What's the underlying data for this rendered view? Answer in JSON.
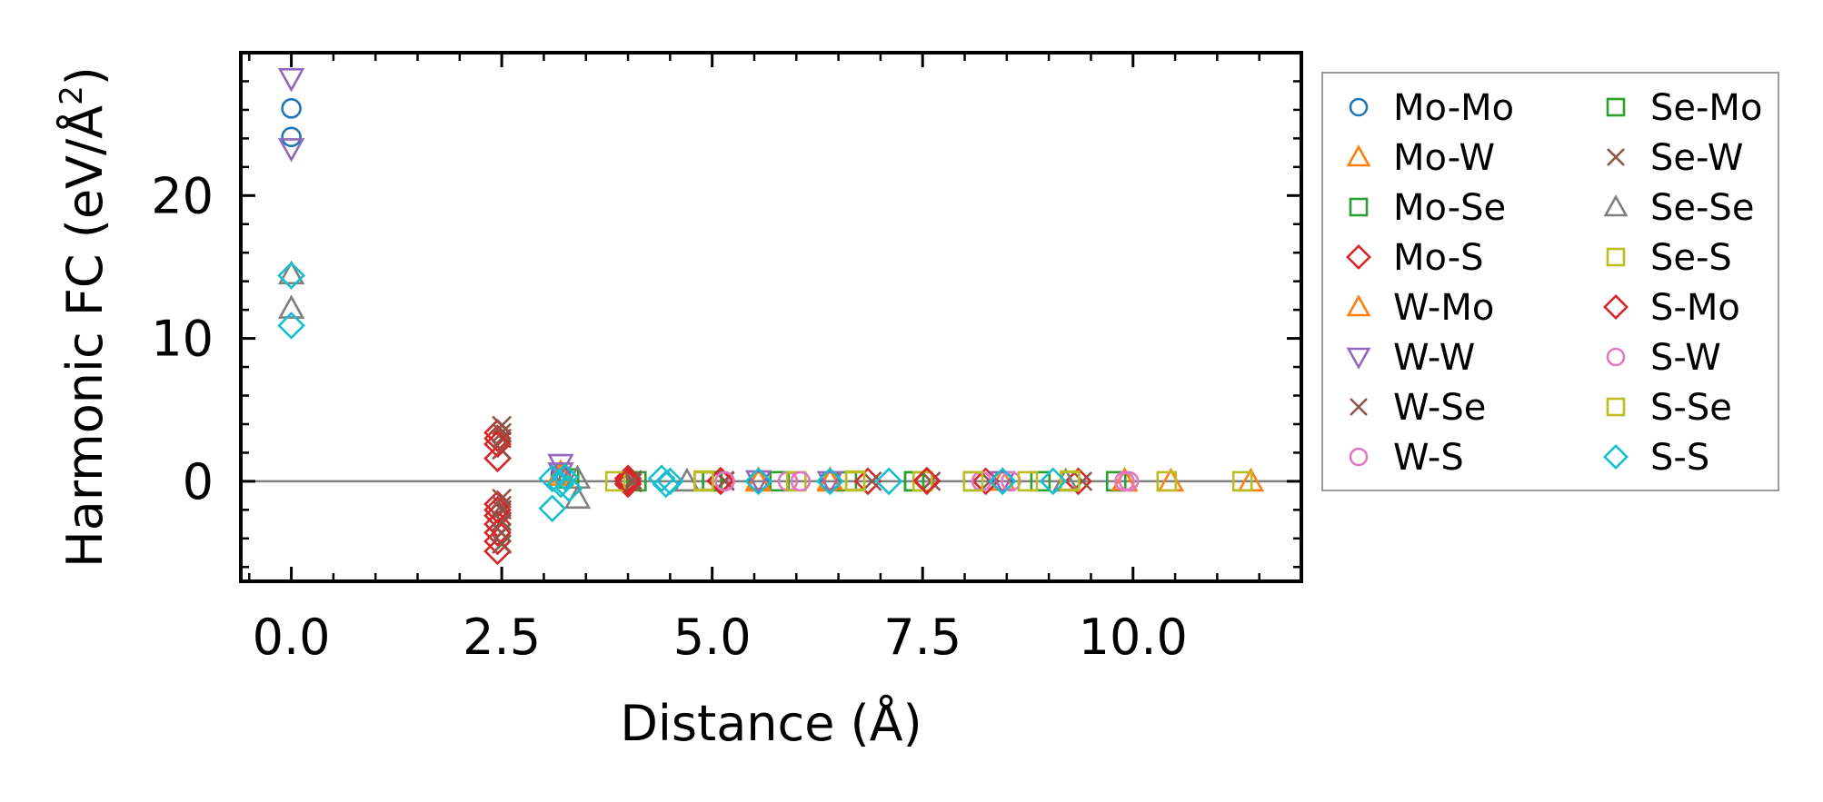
{
  "chart_data": {
    "type": "scatter",
    "title": "",
    "xlabel": "Distance (Å)",
    "ylabel": "Harmonic FC (eV/Å²)",
    "ylabel_base": "Harmonic FC (eV/Å",
    "ylabel_sup": "2",
    "ylabel_close": ")",
    "xlim": [
      -0.6,
      12.0
    ],
    "ylim": [
      -7,
      30
    ],
    "xticks": [
      0.0,
      2.5,
      5.0,
      7.5,
      10.0
    ],
    "xtick_labels": [
      "0.0",
      "2.5",
      "5.0",
      "7.5",
      "10.0"
    ],
    "yticks": [
      0,
      10,
      20
    ],
    "ytick_labels": [
      "0",
      "10",
      "20"
    ],
    "hline": 0,
    "legend_position": "outside-right",
    "legend_columns": 2,
    "series": [
      {
        "name": "Mo-Mo",
        "marker": "circle",
        "color": "#1f77b4",
        "points": [
          [
            0,
            26.1
          ],
          [
            0,
            24.1
          ],
          [
            3.2,
            0.5
          ],
          [
            5.55,
            0.0
          ],
          [
            6.4,
            0.05
          ],
          [
            8.45,
            0.0
          ]
        ]
      },
      {
        "name": "Mo-W",
        "marker": "triangle-up",
        "color": "#ff7f0e",
        "points": [
          [
            3.2,
            0.6
          ],
          [
            5.55,
            0.1
          ],
          [
            6.4,
            0.0
          ],
          [
            8.45,
            0.05
          ],
          [
            9.9,
            0.0
          ],
          [
            10.45,
            0.0
          ],
          [
            11.4,
            0.0
          ]
        ]
      },
      {
        "name": "Mo-Se",
        "marker": "square",
        "color": "#2ca02c",
        "points": [
          [
            3.3,
            0.2
          ],
          [
            4.1,
            0.0
          ],
          [
            5.0,
            0.0
          ],
          [
            5.8,
            0.0
          ],
          [
            6.6,
            0.0
          ],
          [
            7.4,
            0.0
          ],
          [
            8.1,
            0.0
          ],
          [
            8.9,
            0.0
          ],
          [
            9.8,
            0.0
          ]
        ]
      },
      {
        "name": "Mo-S",
        "marker": "diamond",
        "color": "#d62728",
        "points": [
          [
            2.45,
            3.4
          ],
          [
            2.45,
            3.0
          ],
          [
            2.45,
            1.6
          ],
          [
            2.45,
            -1.6
          ],
          [
            2.45,
            -2.4
          ],
          [
            2.45,
            -3.0
          ],
          [
            2.45,
            -3.6
          ],
          [
            2.45,
            -4.2
          ],
          [
            2.45,
            -4.9
          ],
          [
            4.0,
            0.2
          ],
          [
            4.0,
            -0.2
          ],
          [
            5.1,
            0.0
          ],
          [
            6.85,
            0.0
          ],
          [
            7.55,
            0.0
          ],
          [
            8.25,
            0.0
          ],
          [
            9.35,
            0.0
          ]
        ]
      },
      {
        "name": "W-Mo",
        "marker": "triangle-up",
        "color": "#ff7f0e",
        "points": [
          [
            3.2,
            0.4
          ],
          [
            5.55,
            0.0
          ],
          [
            6.4,
            0.1
          ],
          [
            9.9,
            0.05
          ]
        ]
      },
      {
        "name": "W-W",
        "marker": "triangle-down",
        "color": "#9467bd",
        "points": [
          [
            0,
            28.2
          ],
          [
            0,
            23.3
          ],
          [
            3.2,
            1.2
          ],
          [
            3.2,
            0.6
          ],
          [
            5.55,
            0.05
          ],
          [
            6.4,
            0.0
          ],
          [
            8.45,
            0.0
          ]
        ]
      },
      {
        "name": "W-Se",
        "marker": "x",
        "color": "#8c564b",
        "points": [
          [
            2.5,
            3.9
          ],
          [
            2.5,
            3.4
          ],
          [
            2.5,
            2.2
          ],
          [
            2.5,
            -1.2
          ],
          [
            2.5,
            -2.0
          ],
          [
            2.5,
            -2.8
          ],
          [
            2.5,
            -3.6
          ],
          [
            2.5,
            -4.4
          ],
          [
            4.05,
            0.1
          ],
          [
            5.15,
            0.0
          ],
          [
            6.9,
            0.0
          ],
          [
            7.6,
            0.0
          ],
          [
            8.3,
            0.0
          ],
          [
            9.4,
            0.0
          ]
        ]
      },
      {
        "name": "W-S",
        "marker": "circle",
        "color": "#e377c2",
        "points": [
          [
            5.1,
            0.0
          ],
          [
            5.9,
            0.0
          ],
          [
            8.2,
            0.0
          ],
          [
            8.55,
            0.0
          ],
          [
            9.9,
            0.0
          ]
        ]
      },
      {
        "name": "Se-Mo",
        "marker": "square",
        "color": "#2ca02c",
        "points": [
          [
            5.0,
            0.0
          ],
          [
            7.4,
            0.0
          ]
        ]
      },
      {
        "name": "Se-W",
        "marker": "x",
        "color": "#8c564b",
        "points": [
          [
            2.5,
            3.0
          ],
          [
            2.5,
            -1.7
          ],
          [
            4.05,
            -0.1
          ],
          [
            5.15,
            0.05
          ]
        ]
      },
      {
        "name": "Se-Se",
        "marker": "triangle-up",
        "color": "#7f7f7f",
        "points": [
          [
            0,
            14.5
          ],
          [
            0,
            12.1
          ],
          [
            3.4,
            0.2
          ],
          [
            3.4,
            -1.2
          ],
          [
            4.7,
            0.0
          ],
          [
            9.2,
            0.0
          ]
        ]
      },
      {
        "name": "Se-S",
        "marker": "square",
        "color": "#bcbd22",
        "points": [
          [
            3.85,
            0.0
          ],
          [
            4.9,
            0.0
          ],
          [
            6.0,
            0.0
          ],
          [
            6.7,
            0.0
          ],
          [
            7.5,
            0.0
          ],
          [
            8.1,
            0.0
          ],
          [
            8.75,
            0.0
          ],
          [
            9.25,
            0.0
          ],
          [
            10.4,
            0.0
          ],
          [
            11.3,
            0.0
          ]
        ]
      },
      {
        "name": "S-Mo",
        "marker": "diamond",
        "color": "#d62728",
        "points": [
          [
            2.45,
            2.6
          ],
          [
            2.45,
            -2.0
          ],
          [
            4.0,
            0.0
          ],
          [
            5.1,
            0.05
          ],
          [
            7.55,
            0.05
          ]
        ]
      },
      {
        "name": "S-W",
        "marker": "circle",
        "color": "#e377c2",
        "points": [
          [
            5.15,
            0.0
          ],
          [
            6.05,
            0.0
          ],
          [
            9.95,
            0.0
          ]
        ]
      },
      {
        "name": "S-Se",
        "marker": "square",
        "color": "#bcbd22",
        "points": [
          [
            4.9,
            0.05
          ],
          [
            6.7,
            0.05
          ],
          [
            9.25,
            0.05
          ]
        ]
      },
      {
        "name": "S-S",
        "marker": "diamond",
        "color": "#17becf",
        "points": [
          [
            0,
            14.4
          ],
          [
            0,
            10.9
          ],
          [
            3.1,
            0.2
          ],
          [
            3.1,
            -1.9
          ],
          [
            3.2,
            -0.2
          ],
          [
            3.25,
            0.3
          ],
          [
            3.3,
            -0.5
          ],
          [
            4.4,
            0.2
          ],
          [
            4.45,
            -0.2
          ],
          [
            4.5,
            0.0
          ],
          [
            5.55,
            0.0
          ],
          [
            6.4,
            0.0
          ],
          [
            7.1,
            0.0
          ],
          [
            8.45,
            0.0
          ],
          [
            9.05,
            0.0
          ]
        ]
      }
    ]
  }
}
